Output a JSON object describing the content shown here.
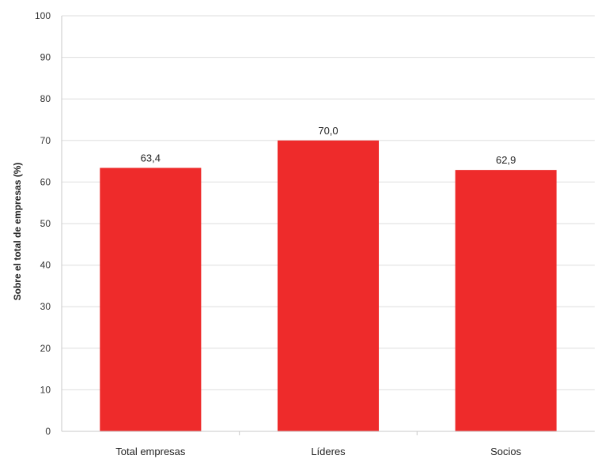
{
  "chart_data": {
    "type": "bar",
    "categories": [
      "Total empresas",
      "Líderes",
      "Socios"
    ],
    "values": [
      63.4,
      70.0,
      62.9
    ],
    "value_labels": [
      "63,4",
      "70,0",
      "62,9"
    ],
    "title": "",
    "xlabel": "",
    "ylabel": "Sobre el total de empresas (%)",
    "ylim": [
      0,
      100
    ],
    "yticks": [
      "0",
      "10",
      "20",
      "30",
      "40",
      "50",
      "60",
      "70",
      "80",
      "90",
      "100"
    ],
    "grid": true,
    "bar_color": "#ee2b2b"
  }
}
